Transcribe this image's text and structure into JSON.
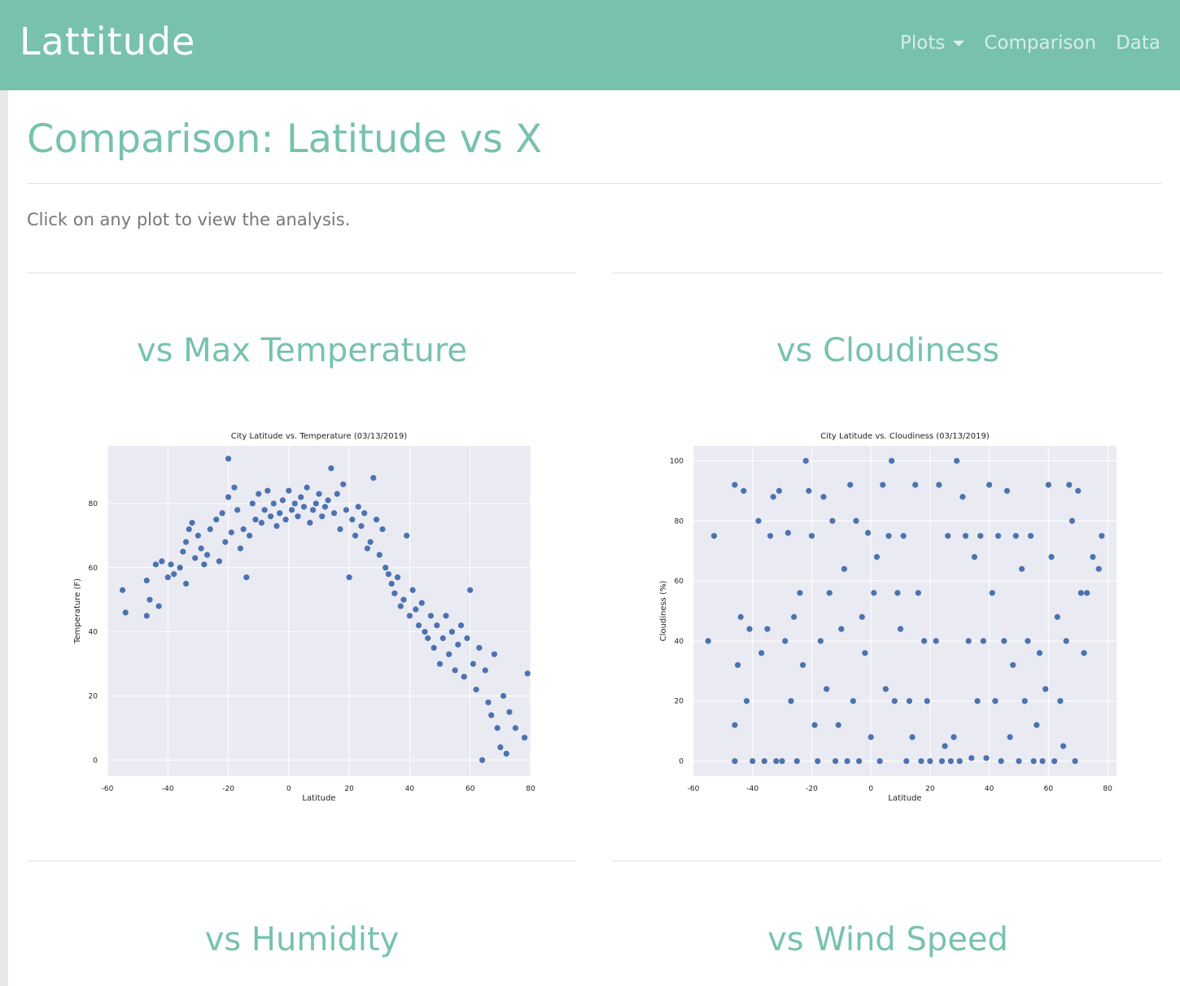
{
  "navbar": {
    "brand": "Lattitude",
    "links": [
      {
        "label": "Plots"
      },
      {
        "label": "Comparison"
      },
      {
        "label": "Data"
      }
    ]
  },
  "page": {
    "title": "Comparison: Latitude vs X",
    "intro": "Click on any plot to view the analysis."
  },
  "sections": [
    {
      "title": "vs Max Temperature"
    },
    {
      "title": "vs Cloudiness"
    },
    {
      "title": "vs Humidity"
    },
    {
      "title": "vs Wind Speed"
    }
  ],
  "colors": {
    "accent": "#78c2ad",
    "point": "#4c72b0",
    "plot_bg": "#eaeaf2"
  },
  "chart_data": [
    {
      "type": "scatter",
      "title": "City Latitude vs. Temperature (03/13/2019)",
      "xlabel": "Latitude",
      "ylabel": "Temperature (F)",
      "xlim": [
        -60,
        80
      ],
      "ylim": [
        -5,
        98
      ],
      "xticks": [
        -60,
        -40,
        -20,
        0,
        20,
        40,
        60,
        80
      ],
      "yticks": [
        0,
        20,
        40,
        60,
        80
      ],
      "grid": true,
      "points": [
        [
          -55,
          53
        ],
        [
          -54,
          46
        ],
        [
          -47,
          45
        ],
        [
          -47,
          56
        ],
        [
          -46,
          50
        ],
        [
          -44,
          61
        ],
        [
          -43,
          48
        ],
        [
          -42,
          62
        ],
        [
          -40,
          57
        ],
        [
          -39,
          61
        ],
        [
          -38,
          58
        ],
        [
          -36,
          60
        ],
        [
          -35,
          65
        ],
        [
          -34,
          68
        ],
        [
          -34,
          55
        ],
        [
          -33,
          72
        ],
        [
          -32,
          74
        ],
        [
          -31,
          63
        ],
        [
          -30,
          70
        ],
        [
          -29,
          66
        ],
        [
          -28,
          61
        ],
        [
          -27,
          64
        ],
        [
          -26,
          72
        ],
        [
          -24,
          75
        ],
        [
          -23,
          62
        ],
        [
          -22,
          77
        ],
        [
          -21,
          68
        ],
        [
          -20,
          82
        ],
        [
          -20,
          94
        ],
        [
          -19,
          71
        ],
        [
          -18,
          85
        ],
        [
          -17,
          78
        ],
        [
          -16,
          66
        ],
        [
          -15,
          72
        ],
        [
          -14,
          57
        ],
        [
          -13,
          70
        ],
        [
          -12,
          80
        ],
        [
          -11,
          75
        ],
        [
          -10,
          83
        ],
        [
          -9,
          74
        ],
        [
          -8,
          78
        ],
        [
          -7,
          84
        ],
        [
          -6,
          76
        ],
        [
          -5,
          80
        ],
        [
          -4,
          73
        ],
        [
          -3,
          77
        ],
        [
          -2,
          81
        ],
        [
          -1,
          75
        ],
        [
          0,
          84
        ],
        [
          1,
          78
        ],
        [
          2,
          80
        ],
        [
          3,
          76
        ],
        [
          4,
          82
        ],
        [
          5,
          79
        ],
        [
          6,
          85
        ],
        [
          7,
          74
        ],
        [
          8,
          78
        ],
        [
          9,
          80
        ],
        [
          10,
          83
        ],
        [
          11,
          76
        ],
        [
          12,
          79
        ],
        [
          13,
          81
        ],
        [
          14,
          91
        ],
        [
          15,
          77
        ],
        [
          16,
          83
        ],
        [
          17,
          72
        ],
        [
          18,
          86
        ],
        [
          19,
          78
        ],
        [
          20,
          57
        ],
        [
          21,
          75
        ],
        [
          22,
          70
        ],
        [
          23,
          79
        ],
        [
          24,
          73
        ],
        [
          25,
          77
        ],
        [
          26,
          66
        ],
        [
          27,
          68
        ],
        [
          28,
          88
        ],
        [
          29,
          75
        ],
        [
          30,
          64
        ],
        [
          31,
          72
        ],
        [
          32,
          60
        ],
        [
          33,
          58
        ],
        [
          34,
          55
        ],
        [
          35,
          52
        ],
        [
          36,
          57
        ],
        [
          37,
          48
        ],
        [
          38,
          50
        ],
        [
          39,
          70
        ],
        [
          40,
          45
        ],
        [
          41,
          53
        ],
        [
          42,
          47
        ],
        [
          43,
          42
        ],
        [
          44,
          49
        ],
        [
          45,
          40
        ],
        [
          46,
          38
        ],
        [
          47,
          45
        ],
        [
          48,
          35
        ],
        [
          49,
          42
        ],
        [
          50,
          30
        ],
        [
          51,
          38
        ],
        [
          52,
          45
        ],
        [
          53,
          33
        ],
        [
          54,
          40
        ],
        [
          55,
          28
        ],
        [
          56,
          36
        ],
        [
          57,
          42
        ],
        [
          58,
          26
        ],
        [
          59,
          38
        ],
        [
          60,
          53
        ],
        [
          61,
          30
        ],
        [
          62,
          22
        ],
        [
          63,
          35
        ],
        [
          64,
          0
        ],
        [
          65,
          28
        ],
        [
          66,
          18
        ],
        [
          67,
          14
        ],
        [
          68,
          33
        ],
        [
          69,
          10
        ],
        [
          70,
          4
        ],
        [
          71,
          20
        ],
        [
          72,
          2
        ],
        [
          73,
          15
        ],
        [
          75,
          10
        ],
        [
          78,
          7
        ],
        [
          79,
          27
        ]
      ]
    },
    {
      "type": "scatter",
      "title": "City Latitude vs. Cloudiness (03/13/2019)",
      "xlabel": "Latitude",
      "ylabel": "Cloudiness (%)",
      "xlim": [
        -60,
        83
      ],
      "ylim": [
        -5,
        105
      ],
      "xticks": [
        -60,
        -40,
        -20,
        0,
        20,
        40,
        60,
        80
      ],
      "yticks": [
        0,
        20,
        40,
        60,
        80,
        100
      ],
      "grid": true,
      "points": [
        [
          -55,
          40
        ],
        [
          -53,
          75
        ],
        [
          -46,
          92
        ],
        [
          -46,
          12
        ],
        [
          -46,
          0
        ],
        [
          -45,
          32
        ],
        [
          -44,
          48
        ],
        [
          -43,
          90
        ],
        [
          -42,
          20
        ],
        [
          -41,
          44
        ],
        [
          -40,
          0
        ],
        [
          -38,
          80
        ],
        [
          -37,
          36
        ],
        [
          -36,
          0
        ],
        [
          -35,
          44
        ],
        [
          -34,
          75
        ],
        [
          -33,
          88
        ],
        [
          -32,
          0
        ],
        [
          -31,
          90
        ],
        [
          -30,
          0
        ],
        [
          -29,
          40
        ],
        [
          -28,
          76
        ],
        [
          -27,
          20
        ],
        [
          -26,
          48
        ],
        [
          -25,
          0
        ],
        [
          -24,
          56
        ],
        [
          -23,
          32
        ],
        [
          -22,
          100
        ],
        [
          -21,
          90
        ],
        [
          -20,
          75
        ],
        [
          -19,
          12
        ],
        [
          -18,
          0
        ],
        [
          -17,
          40
        ],
        [
          -16,
          88
        ],
        [
          -15,
          24
        ],
        [
          -14,
          56
        ],
        [
          -13,
          80
        ],
        [
          -12,
          0
        ],
        [
          -11,
          12
        ],
        [
          -10,
          44
        ],
        [
          -9,
          64
        ],
        [
          -8,
          0
        ],
        [
          -7,
          92
        ],
        [
          -6,
          20
        ],
        [
          -5,
          80
        ],
        [
          -4,
          0
        ],
        [
          -3,
          48
        ],
        [
          -2,
          36
        ],
        [
          -1,
          76
        ],
        [
          0,
          8
        ],
        [
          1,
          56
        ],
        [
          2,
          68
        ],
        [
          3,
          0
        ],
        [
          4,
          92
        ],
        [
          5,
          24
        ],
        [
          6,
          75
        ],
        [
          7,
          100
        ],
        [
          8,
          20
        ],
        [
          9,
          56
        ],
        [
          10,
          44
        ],
        [
          11,
          75
        ],
        [
          12,
          0
        ],
        [
          13,
          20
        ],
        [
          14,
          8
        ],
        [
          15,
          92
        ],
        [
          16,
          56
        ],
        [
          17,
          0
        ],
        [
          18,
          40
        ],
        [
          19,
          20
        ],
        [
          20,
          0
        ],
        [
          22,
          40
        ],
        [
          23,
          92
        ],
        [
          24,
          0
        ],
        [
          25,
          5
        ],
        [
          26,
          75
        ],
        [
          27,
          0
        ],
        [
          28,
          8
        ],
        [
          29,
          100
        ],
        [
          30,
          0
        ],
        [
          31,
          88
        ],
        [
          32,
          75
        ],
        [
          33,
          40
        ],
        [
          34,
          1
        ],
        [
          35,
          68
        ],
        [
          36,
          20
        ],
        [
          37,
          75
        ],
        [
          38,
          40
        ],
        [
          39,
          1
        ],
        [
          40,
          92
        ],
        [
          41,
          56
        ],
        [
          42,
          20
        ],
        [
          43,
          75
        ],
        [
          44,
          0
        ],
        [
          45,
          40
        ],
        [
          46,
          90
        ],
        [
          47,
          8
        ],
        [
          48,
          32
        ],
        [
          49,
          75
        ],
        [
          50,
          0
        ],
        [
          51,
          64
        ],
        [
          52,
          20
        ],
        [
          53,
          40
        ],
        [
          54,
          75
        ],
        [
          55,
          0
        ],
        [
          56,
          12
        ],
        [
          57,
          36
        ],
        [
          58,
          0
        ],
        [
          59,
          24
        ],
        [
          60,
          92
        ],
        [
          61,
          68
        ],
        [
          62,
          0
        ],
        [
          63,
          48
        ],
        [
          64,
          20
        ],
        [
          65,
          5
        ],
        [
          66,
          40
        ],
        [
          67,
          92
        ],
        [
          68,
          80
        ],
        [
          69,
          0
        ],
        [
          70,
          90
        ],
        [
          71,
          56
        ],
        [
          72,
          36
        ],
        [
          73,
          56
        ],
        [
          75,
          68
        ],
        [
          77,
          64
        ],
        [
          78,
          75
        ]
      ]
    }
  ]
}
